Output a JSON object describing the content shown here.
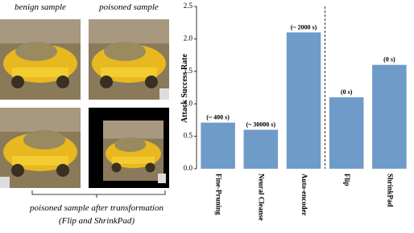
{
  "figure": {
    "benign_caption": "benign sample",
    "poisoned_caption": "poisoned sample",
    "transform_caption": "poisoned sample after transformation",
    "transform_subcaption": "(Flip and ShrinkPad)"
  },
  "chart_data": {
    "type": "bar",
    "y_label": "Attack Success Rate",
    "categories": [
      "Fine-Pruning",
      "Neural Cleanse",
      "Auto-encoder",
      "Flip",
      "ShrinkPad"
    ],
    "values": [
      0.71,
      0.6,
      2.1,
      1.1,
      1.6
    ],
    "annotations": [
      "(~ 400 s)",
      "(~ 30000 s)",
      "(~ 2000 s)",
      "(0 s)",
      "(0 s)"
    ],
    "color": "#6f9bc8",
    "ylim": [
      0,
      2.5
    ],
    "yticks": [
      {
        "value": 0,
        "label": "0.0"
      },
      0.5,
      {
        "value": 1,
        "label": "1.0"
      },
      1.5,
      {
        "value": 2,
        "label": "2.0"
      },
      2.5
    ]
  }
}
